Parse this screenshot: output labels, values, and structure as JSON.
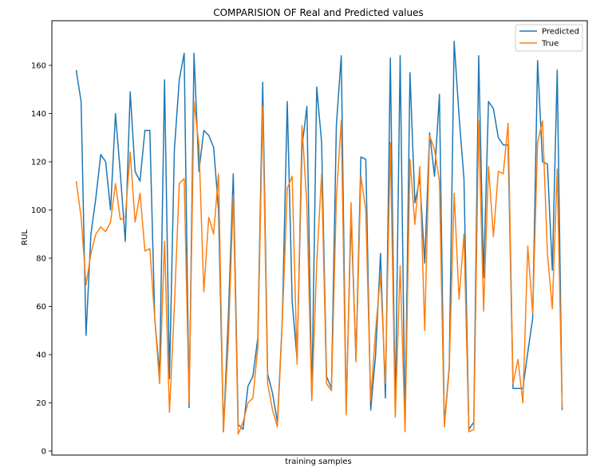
{
  "chart_data": {
    "type": "line",
    "title": "COMPARISION OF Real and Predicted values",
    "xlabel": "training samples",
    "ylabel": "RUL",
    "ylim": [
      0,
      175
    ],
    "yticks": [
      0,
      20,
      40,
      60,
      80,
      100,
      120,
      140,
      160
    ],
    "grid": false,
    "legend_position": "top-right",
    "series": [
      {
        "name": "Predicted",
        "color": "#1f77b4",
        "values": [
          158,
          145,
          48,
          90,
          105,
          123,
          120,
          100,
          140,
          115,
          87,
          149,
          116,
          112,
          133,
          133,
          55,
          32,
          154,
          30,
          125,
          154,
          165,
          18,
          165,
          116,
          133,
          131,
          126,
          100,
          8,
          56,
          115,
          11,
          9,
          27,
          31,
          47,
          153,
          32,
          24,
          12,
          55,
          145,
          62,
          38,
          126,
          143,
          21,
          151,
          128,
          31,
          26,
          135,
          164,
          16,
          98,
          38,
          122,
          121,
          17,
          40,
          82,
          22,
          163,
          16,
          164,
          10,
          157,
          103,
          113,
          78,
          132,
          114,
          148,
          11,
          35,
          170,
          139,
          113,
          9,
          12,
          164,
          72,
          145,
          142,
          130,
          127,
          127,
          26,
          26,
          26,
          41,
          55,
          162,
          120,
          119,
          75,
          158,
          17
        ]
      },
      {
        "name": "True",
        "color": "#ff7f0e",
        "values": [
          112,
          97,
          69,
          82,
          90,
          93,
          91,
          95,
          111,
          96,
          97,
          124,
          95,
          107,
          83,
          84,
          55,
          28,
          87,
          16,
          60,
          111,
          113,
          20,
          145,
          127,
          66,
          97,
          90,
          115,
          8,
          46,
          106,
          7,
          12,
          20,
          22,
          43,
          143,
          28,
          17,
          10,
          54,
          109,
          114,
          36,
          135,
          102,
          21,
          78,
          115,
          28,
          25,
          105,
          137,
          15,
          103,
          37,
          114,
          100,
          21,
          50,
          73,
          28,
          128,
          14,
          77,
          8,
          121,
          94,
          118,
          50,
          131,
          125,
          112,
          10,
          34,
          107,
          63,
          90,
          8,
          9,
          137,
          58,
          118,
          89,
          116,
          115,
          136,
          28,
          38,
          20,
          85,
          57,
          128,
          137,
          82,
          59,
          117,
          18
        ]
      }
    ]
  }
}
